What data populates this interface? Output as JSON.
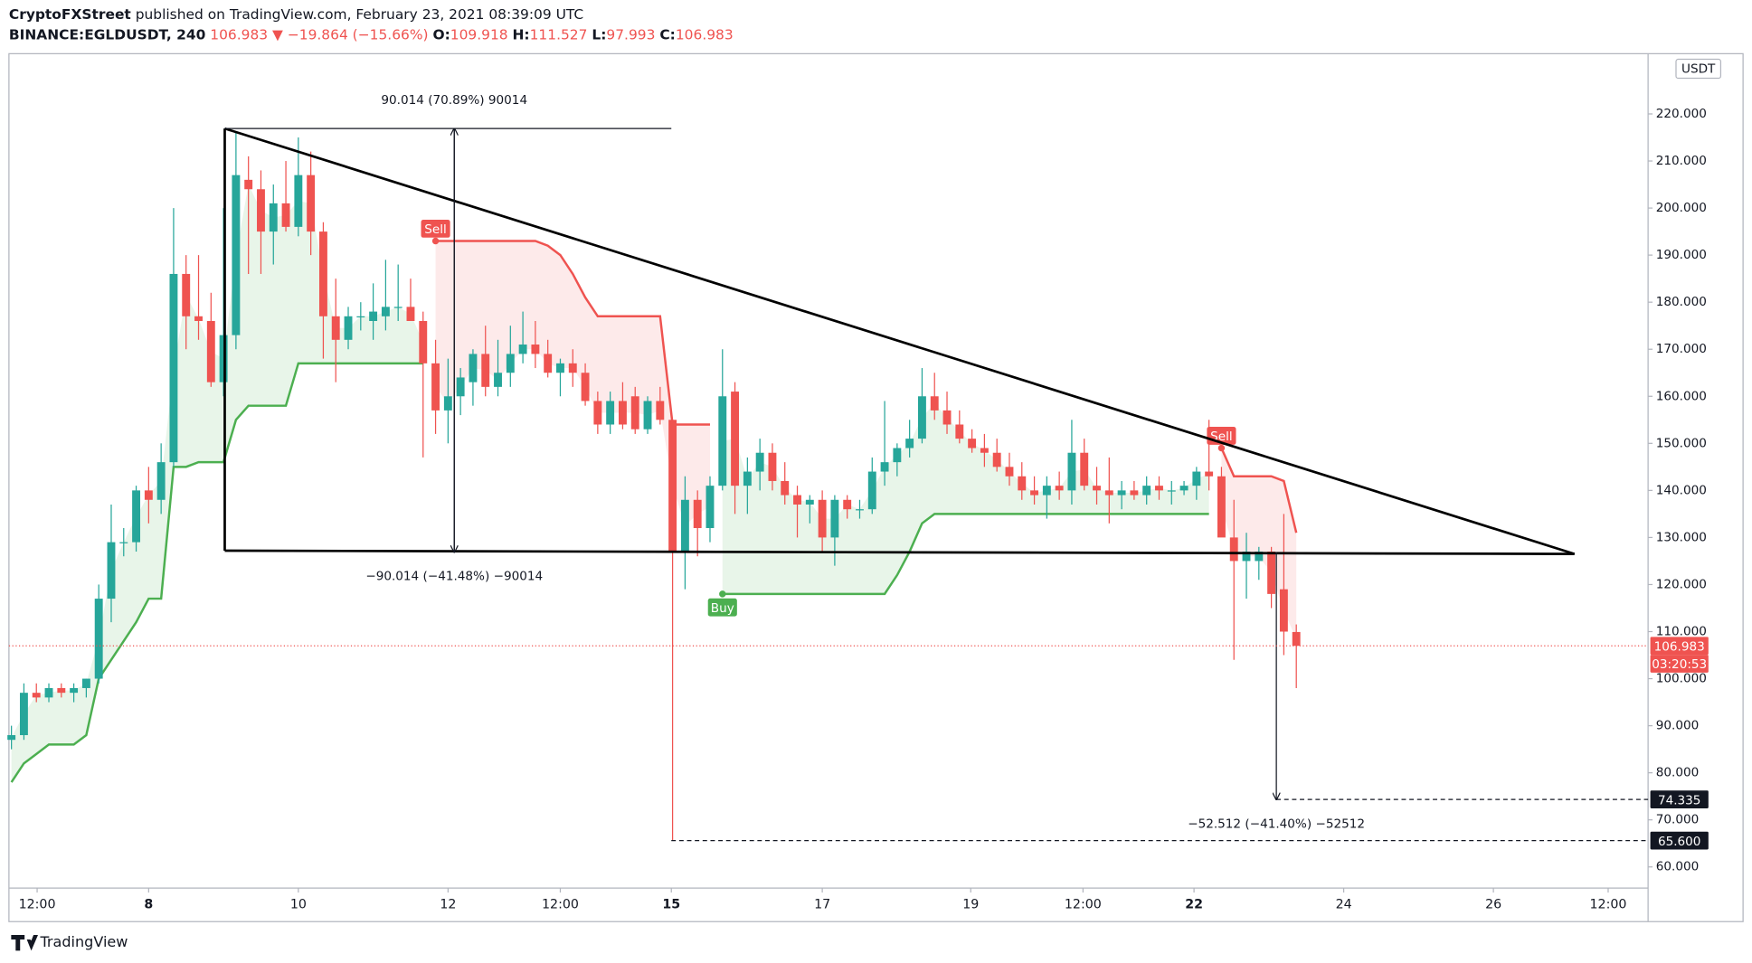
{
  "header": {
    "author": "CryptoFXStreet",
    "published": " published on TradingView.com, February 23, 2021 08:39:09 UTC",
    "symbol": "BINANCE:EGLDUSDT, 240",
    "last": "106.983",
    "change": "▼ −19.864 (−15.66%)",
    "o_label": "O:",
    "o": "109.918",
    "h_label": "H:",
    "h": "111.527",
    "l_label": "L:",
    "l": "97.993",
    "c_label": "C:",
    "c": "106.983"
  },
  "chart_data": {
    "type": "candlestick",
    "currency": "USDT",
    "up_color": "#26a69a",
    "down_color": "#ef5350",
    "xlim": [
      -0.2,
      131.2
    ],
    "ylim": [
      55.5,
      232.8
    ],
    "xticks": [
      {
        "value": 2.06,
        "label": "12:00"
      },
      {
        "value": 11,
        "label": "8",
        "bold": true
      },
      {
        "value": 23,
        "label": "10"
      },
      {
        "value": 35,
        "label": "12"
      },
      {
        "value": 44,
        "label": "12:00"
      },
      {
        "value": 52.9,
        "label": "15",
        "bold": true
      },
      {
        "value": 65,
        "label": "17"
      },
      {
        "value": 76.9,
        "label": "19"
      },
      {
        "value": 85.9,
        "label": "12:00"
      },
      {
        "value": 94.8,
        "label": "22",
        "bold": true
      },
      {
        "value": 106.8,
        "label": "24"
      },
      {
        "value": 118.8,
        "label": "26"
      },
      {
        "value": 128,
        "label": "12:00"
      }
    ],
    "yticks": [
      {
        "value": 60,
        "label": "60.000"
      },
      {
        "value": 70,
        "label": "70.000"
      },
      {
        "value": 80,
        "label": "80.000"
      },
      {
        "value": 90,
        "label": "90.000"
      },
      {
        "value": 100,
        "label": "100.000"
      },
      {
        "value": 110,
        "label": "110.000"
      },
      {
        "value": 120,
        "label": "120.000"
      },
      {
        "value": 130,
        "label": "130.000"
      },
      {
        "value": 140,
        "label": "140.000"
      },
      {
        "value": 150,
        "label": "150.000"
      },
      {
        "value": 160,
        "label": "160.000"
      },
      {
        "value": 170,
        "label": "170.000"
      },
      {
        "value": 180,
        "label": "180.000"
      },
      {
        "value": 190,
        "label": "190.000"
      },
      {
        "value": 200,
        "label": "200.000"
      },
      {
        "value": 210,
        "label": "210.000"
      },
      {
        "value": 220,
        "label": "220.000"
      }
    ],
    "open": [
      87,
      88,
      97,
      96,
      98,
      97,
      98,
      100,
      117,
      129,
      129,
      140,
      138,
      146,
      186,
      177,
      176,
      163,
      173,
      206,
      204,
      195,
      201,
      196,
      207,
      195,
      177,
      172,
      177,
      176,
      177,
      179,
      179,
      176,
      167,
      157,
      160,
      163,
      169,
      162,
      165,
      169,
      171,
      169,
      165,
      167,
      165,
      159,
      154,
      159,
      160,
      153,
      159,
      155,
      127,
      138,
      132,
      141,
      161,
      141,
      144,
      148,
      142,
      139,
      137,
      138,
      130,
      138,
      136,
      136,
      144,
      146,
      149,
      151,
      160,
      157,
      154,
      151,
      149,
      148,
      145,
      143,
      140,
      139,
      141,
      140,
      148,
      141,
      140,
      139,
      140,
      139,
      141,
      140,
      140,
      141,
      144,
      143,
      130,
      125,
      125,
      127,
      119,
      109.918
    ],
    "high": [
      90,
      99,
      99,
      99,
      99,
      99,
      100,
      120,
      137,
      132,
      141,
      145,
      150,
      200,
      190,
      190,
      182,
      200,
      216,
      211,
      208,
      205,
      210,
      215,
      212,
      197,
      185,
      179,
      180,
      184,
      189,
      188,
      185,
      178,
      172,
      168,
      166,
      170,
      175,
      172,
      175,
      178,
      176,
      172,
      168,
      170,
      167,
      161,
      161,
      163,
      162,
      160,
      162,
      155,
      143,
      140,
      143,
      170,
      163,
      147,
      151,
      150,
      146,
      141,
      139,
      140,
      139,
      139,
      138,
      147,
      159,
      150,
      155,
      166,
      165,
      161,
      157,
      153,
      152,
      151,
      148,
      146,
      143,
      143,
      144,
      155,
      151,
      145,
      147,
      142,
      142,
      143,
      143,
      142,
      142,
      145,
      155,
      145,
      138,
      131,
      128,
      128,
      135,
      111.527
    ],
    "low": [
      85,
      87,
      95,
      95,
      96,
      95,
      96,
      99,
      112,
      126,
      127,
      133,
      135,
      145,
      170,
      172,
      162,
      160,
      170,
      186,
      186,
      188,
      195,
      194,
      190,
      168,
      163,
      170,
      174,
      172,
      174,
      176,
      176,
      147,
      152,
      150,
      156,
      158,
      160,
      160,
      162,
      167,
      166,
      164,
      160,
      162,
      158,
      152,
      152,
      153,
      152,
      152,
      154,
      65.6,
      119,
      126,
      129,
      140,
      135,
      135,
      140,
      140,
      137,
      130,
      133,
      127,
      124,
      134,
      134,
      135,
      141,
      143,
      147,
      150,
      155,
      152,
      150,
      148,
      145,
      144,
      141,
      138,
      137,
      134,
      138,
      137,
      140,
      137,
      133,
      136,
      138,
      137,
      138,
      137,
      139,
      138,
      140,
      131,
      104,
      117,
      121,
      115,
      105,
      97.993
    ],
    "close": [
      88,
      97,
      96,
      98,
      97,
      98,
      100,
      117,
      129,
      129,
      140,
      138,
      146,
      186,
      177,
      176,
      163,
      173,
      207,
      204,
      195,
      201,
      196,
      207,
      195,
      177,
      172,
      177,
      177,
      178,
      179,
      179,
      176,
      167,
      157,
      160,
      164,
      169,
      162,
      165,
      169,
      171,
      169,
      165,
      167,
      165,
      159,
      154,
      159,
      154,
      153,
      159,
      155,
      127,
      138,
      132,
      141,
      160,
      141,
      144,
      148,
      142,
      139,
      137,
      138,
      130,
      138,
      136,
      136,
      144,
      146,
      149,
      151,
      160,
      157,
      154,
      151,
      149,
      148,
      145,
      143,
      140,
      139,
      141,
      140,
      148,
      141,
      140,
      139,
      140,
      139,
      141,
      140,
      140,
      141,
      144,
      143,
      130,
      125,
      127,
      127,
      118,
      110,
      106.983
    ],
    "supertrend_up": {
      "color": "#4caf50",
      "fill": "#e8f5e9",
      "signal": "Buy",
      "values": [
        78,
        82,
        84,
        86,
        86,
        86,
        88,
        100,
        104,
        108,
        112,
        117,
        117,
        145,
        145,
        146,
        146,
        146,
        155,
        158,
        158,
        158,
        158,
        167,
        167,
        167,
        167,
        167,
        167,
        167,
        167,
        167,
        167,
        167,
        null,
        null,
        null,
        null,
        null,
        null,
        null,
        null,
        null,
        null,
        null,
        null,
        null,
        null,
        null,
        null,
        null,
        null,
        null,
        null,
        null,
        null,
        null,
        118,
        118,
        118,
        118,
        118,
        118,
        118,
        118,
        118,
        118,
        118,
        118,
        118,
        118,
        122,
        127,
        133,
        135,
        135,
        135,
        135,
        135,
        135,
        135,
        135,
        135,
        135,
        135,
        135,
        135,
        135,
        135,
        135,
        135,
        135,
        135,
        135,
        135,
        135,
        135,
        null,
        null,
        null,
        null,
        null,
        null,
        null
      ]
    },
    "supertrend_down": {
      "color": "#ef5350",
      "fill": "#fdeaea",
      "signal": "Sell",
      "values": [
        null,
        null,
        null,
        null,
        null,
        null,
        null,
        null,
        null,
        null,
        null,
        null,
        null,
        null,
        null,
        null,
        null,
        null,
        null,
        null,
        null,
        null,
        null,
        null,
        null,
        null,
        null,
        null,
        null,
        null,
        null,
        null,
        null,
        null,
        193,
        193,
        193,
        193,
        193,
        193,
        193,
        193,
        193,
        192,
        190,
        186,
        181,
        177,
        177,
        177,
        177,
        177,
        177,
        154,
        154,
        154,
        154,
        null,
        null,
        null,
        null,
        null,
        null,
        null,
        null,
        null,
        null,
        null,
        null,
        null,
        null,
        null,
        null,
        null,
        null,
        null,
        null,
        null,
        null,
        null,
        null,
        null,
        null,
        null,
        null,
        null,
        null,
        null,
        null,
        null,
        null,
        null,
        null,
        null,
        null,
        null,
        null,
        149,
        143,
        143,
        143,
        143,
        142,
        131
      ]
    },
    "trendlines": [
      {
        "x": [
          17.1,
          125.3
        ],
        "y": [
          216.9,
          126.5
        ]
      },
      {
        "x": [
          17.1,
          125.3
        ],
        "y": [
          127.2,
          126.5
        ]
      },
      {
        "x": [
          17.1,
          17.1
        ],
        "y": [
          216.9,
          127.2
        ]
      }
    ],
    "measures": [
      {
        "x": 35.5,
        "from": 126.9,
        "to": 216.9,
        "span": [
          17.1,
          52.9
        ],
        "label": "90.014  (70.89%)  90014"
      },
      {
        "x": 35.5,
        "from": 216.9,
        "to": 126.9,
        "label": "−90.014  (−41.48%)  −90014"
      },
      {
        "x": 101.4,
        "from": 126.9,
        "to": 74.335,
        "label": "−52.512  (−41.40%)  −52512"
      }
    ],
    "price_lines": [
      {
        "value": 106.983,
        "label": "106.983",
        "timer": "03:20:53",
        "color": "#ef5350",
        "style": "dotted"
      },
      {
        "value": 74.335,
        "label": "74.335",
        "from": 101.4,
        "color": "#131722",
        "style": "dashed"
      },
      {
        "value": 65.6,
        "label": "65.600",
        "from": 52.9,
        "color": "#131722",
        "style": "dashed"
      }
    ]
  },
  "footer": {
    "brand": "TradingView"
  }
}
